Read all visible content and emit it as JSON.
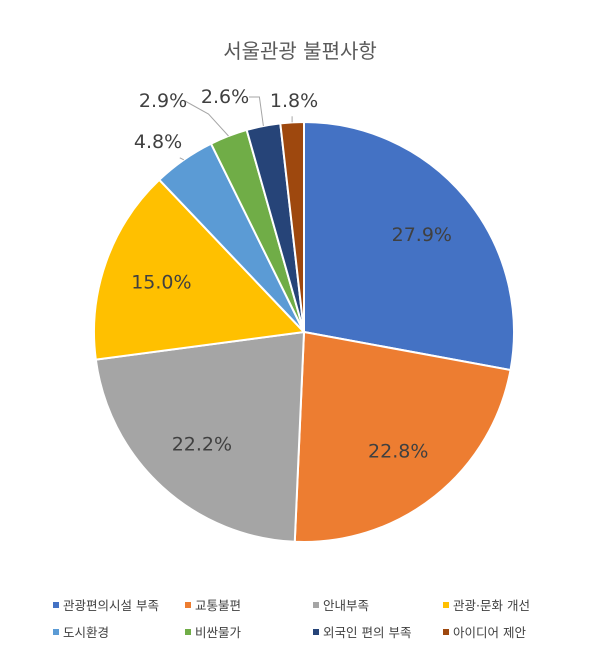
{
  "chart_data": {
    "type": "pie",
    "title": "서울관광 불편사항",
    "start_angle_deg": 0,
    "direction": "clockwise",
    "legend_position": "bottom",
    "slices": [
      {
        "label": "관광편의시설 부족",
        "value": 27.9,
        "display": "27.9%",
        "color": "#4472C4"
      },
      {
        "label": "교통불편",
        "value": 22.8,
        "display": "22.8%",
        "color": "#ED7D31"
      },
      {
        "label": "안내부족",
        "value": 22.2,
        "display": "22.2%",
        "color": "#A5A5A5"
      },
      {
        "label": "관광·문화 개선",
        "value": 15.0,
        "display": "15.0%",
        "color": "#FFC000"
      },
      {
        "label": "도시환경",
        "value": 4.8,
        "display": "4.8%",
        "color": "#5B9BD5"
      },
      {
        "label": "비싼물가",
        "value": 2.9,
        "display": "2.9%",
        "color": "#70AD47"
      },
      {
        "label": "외국인 편의 부족",
        "value": 2.6,
        "display": "2.6%",
        "color": "#264478"
      },
      {
        "label": "아이디어 제안",
        "value": 1.8,
        "display": "1.8%",
        "color": "#9E480E"
      }
    ]
  }
}
